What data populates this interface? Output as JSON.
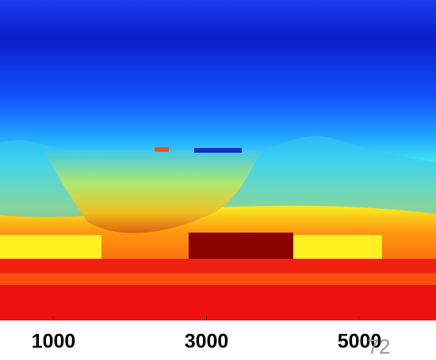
{
  "chart_data": {
    "type": "heatmap",
    "xlim": [
      300,
      6000
    ],
    "xticks": [
      1000,
      3000,
      5000
    ]
  },
  "page_number": "72"
}
